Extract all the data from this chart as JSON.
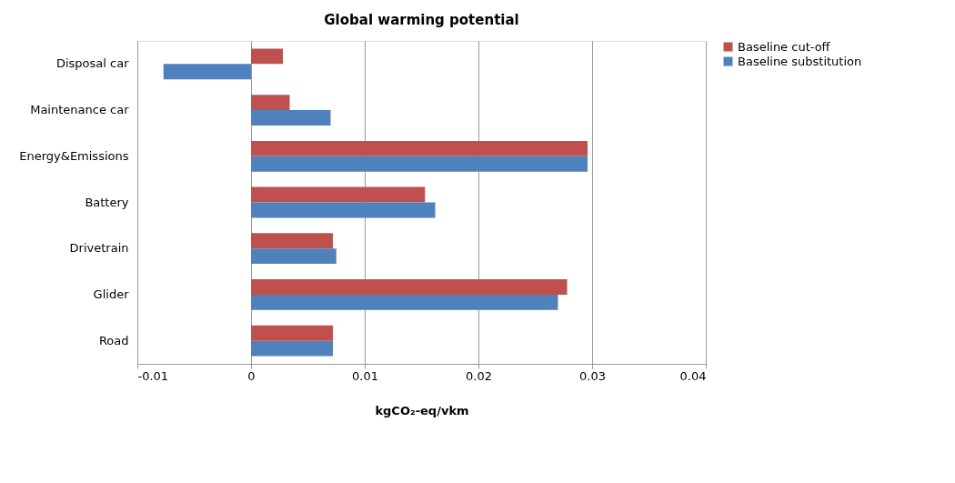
{
  "chart_data": {
    "type": "bar",
    "orientation": "horizontal",
    "title": "Global warming potential",
    "xlabel": "kgCO₂-eq/vkm",
    "categories": [
      "Disposal car",
      "Maintenance car",
      "Energy&Emissions",
      "Battery",
      "Drivetrain",
      "Glider",
      "Road"
    ],
    "series": [
      {
        "name": "Baseline cut-off",
        "color": "#c0504d",
        "values": [
          0.0028,
          0.0034,
          0.0296,
          0.0153,
          0.0072,
          0.0278,
          0.0072
        ]
      },
      {
        "name": "Baseline substitution",
        "color": "#4f81bd",
        "values": [
          -0.0077,
          0.007,
          0.0296,
          0.0162,
          0.0075,
          0.027,
          0.0072
        ]
      }
    ],
    "xlim": [
      -0.01,
      0.04
    ],
    "xticks": [
      -0.01,
      0,
      0.01,
      0.02,
      0.03,
      0.04
    ],
    "grid": "x",
    "legend": "right"
  }
}
